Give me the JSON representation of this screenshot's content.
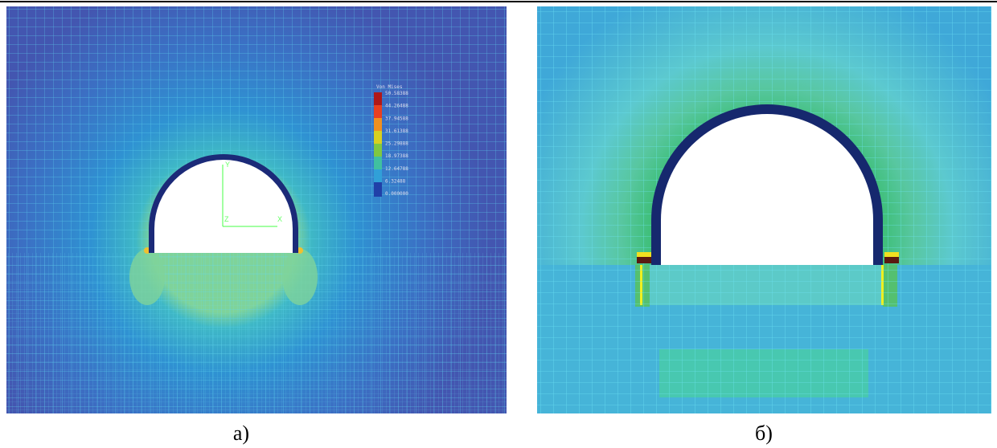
{
  "panels": [
    {
      "label": "а)",
      "legend": {
        "title": "Von Mises",
        "values": [
          "50.58388",
          "44.26488",
          "37.94588",
          "31.61388",
          "25.29888",
          "18.97388",
          "12.64788",
          "6.32488",
          "0.000000"
        ]
      },
      "axes": {
        "y": "Y",
        "z": "Z",
        "x": "X"
      }
    },
    {
      "label": "б)"
    }
  ]
}
